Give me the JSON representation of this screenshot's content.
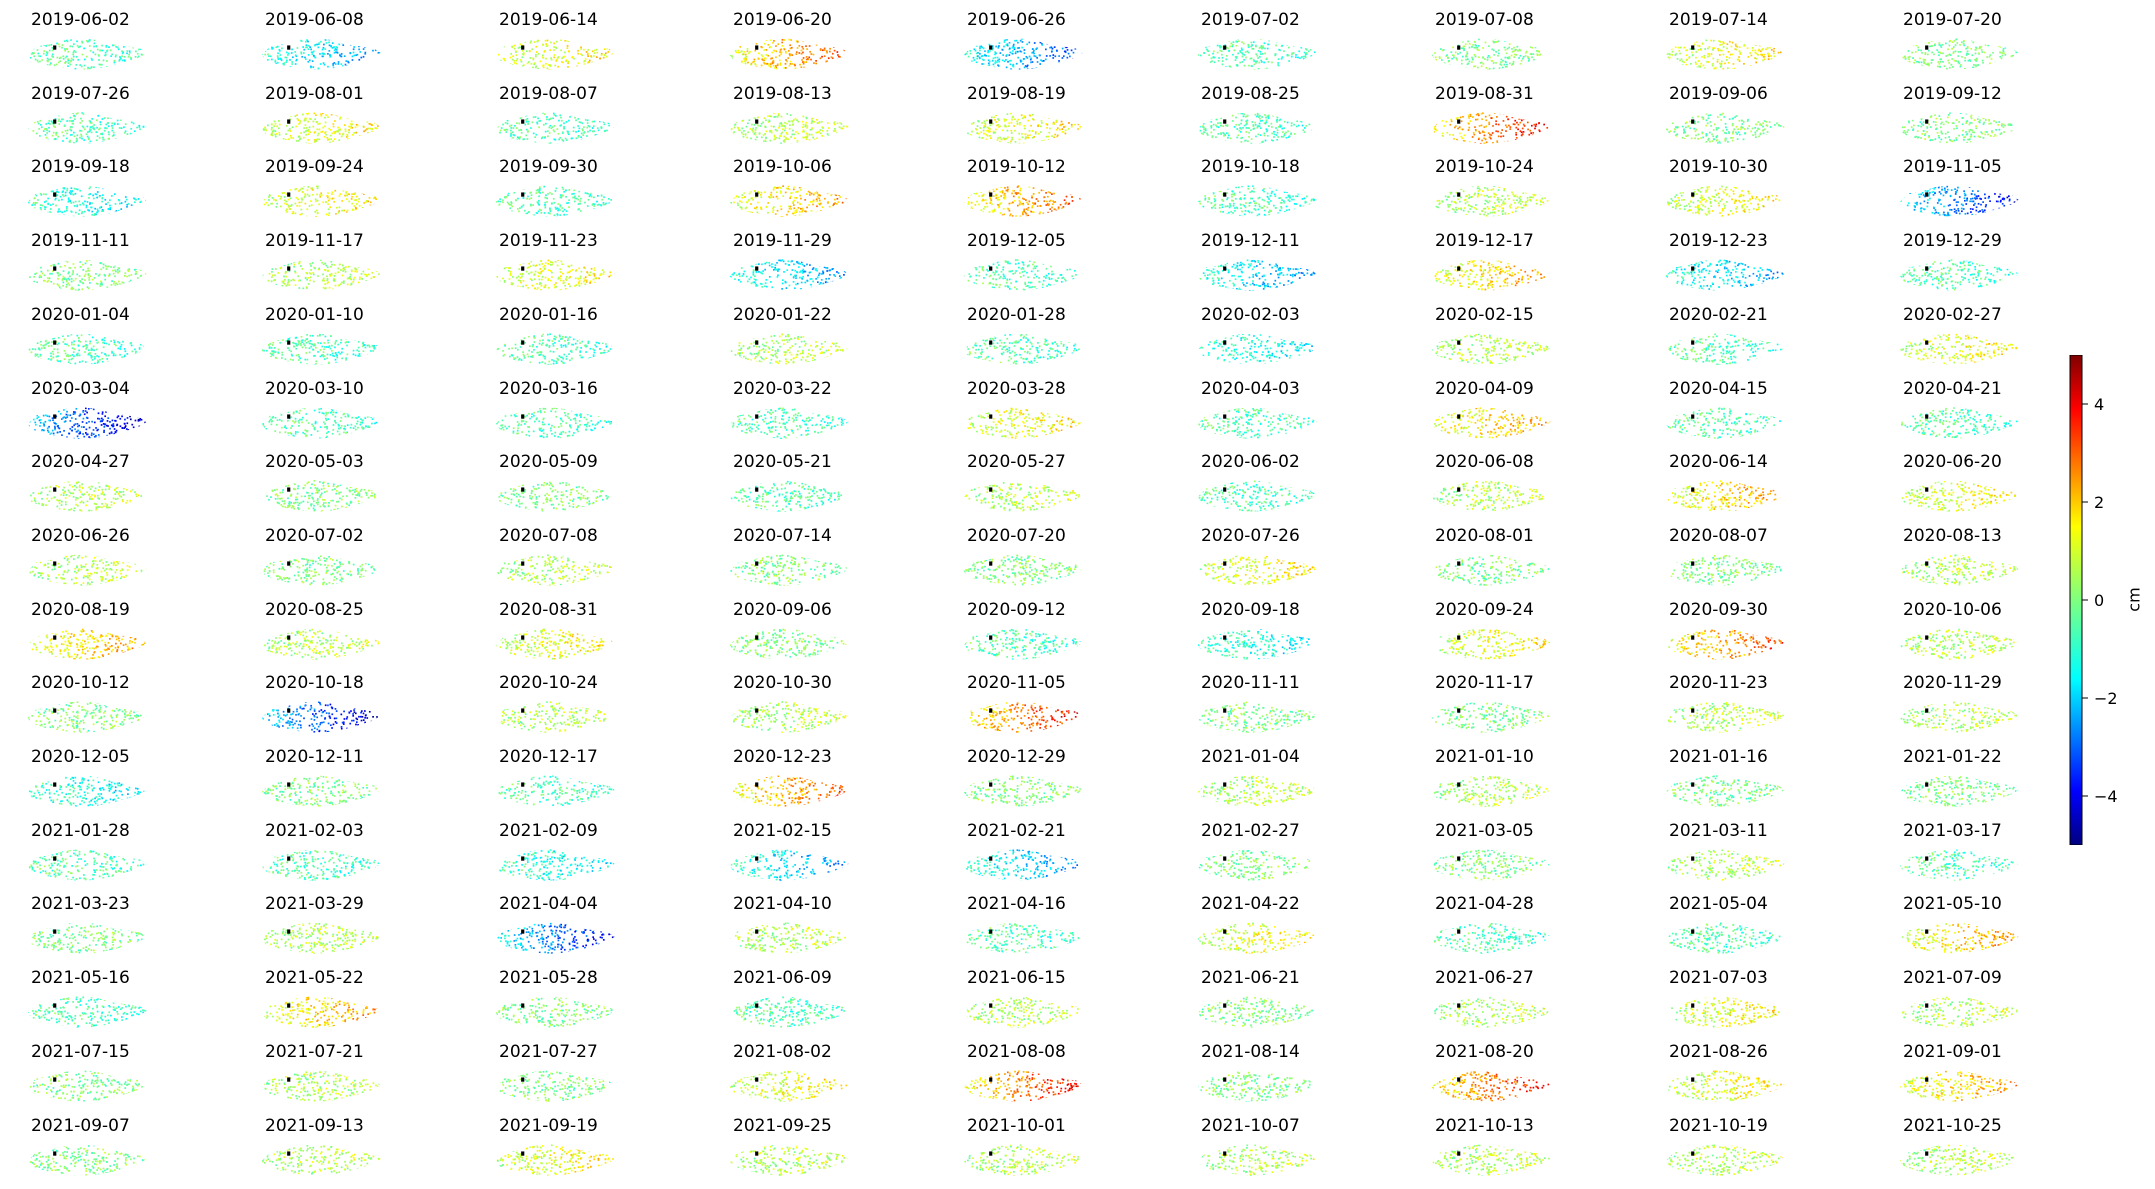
{
  "chart_data": {
    "type": "heatmap",
    "title": "",
    "colorbar": {
      "label": "cm",
      "range": [
        -5,
        5
      ],
      "ticks": [
        4,
        2,
        0,
        -2,
        -4
      ],
      "tick_labels": [
        "4",
        "2",
        "0",
        "−2",
        "−4"
      ],
      "colormap": "jet"
    },
    "grid": {
      "rows": 16,
      "columns": 9
    },
    "panels": [
      {
        "date": "2019-06-02",
        "mean": -0.5
      },
      {
        "date": "2019-06-08",
        "mean": -1.5
      },
      {
        "date": "2019-06-14",
        "mean": 1.0
      },
      {
        "date": "2019-06-20",
        "mean": 2.0
      },
      {
        "date": "2019-06-26",
        "mean": -2.0
      },
      {
        "date": "2019-07-02",
        "mean": -0.5
      },
      {
        "date": "2019-07-08",
        "mean": 0.0
      },
      {
        "date": "2019-07-14",
        "mean": 1.0
      },
      {
        "date": "2019-07-20",
        "mean": 0.0
      },
      {
        "date": "2019-07-26",
        "mean": -0.5
      },
      {
        "date": "2019-08-01",
        "mean": 1.0
      },
      {
        "date": "2019-08-07",
        "mean": -0.5
      },
      {
        "date": "2019-08-13",
        "mean": 0.5
      },
      {
        "date": "2019-08-19",
        "mean": 1.0
      },
      {
        "date": "2019-08-25",
        "mean": -0.5
      },
      {
        "date": "2019-08-31",
        "mean": 2.5
      },
      {
        "date": "2019-09-06",
        "mean": 0.0
      },
      {
        "date": "2019-09-12",
        "mean": 0.0
      },
      {
        "date": "2019-09-18",
        "mean": -1.0
      },
      {
        "date": "2019-09-24",
        "mean": 1.0
      },
      {
        "date": "2019-09-30",
        "mean": -0.5
      },
      {
        "date": "2019-10-06",
        "mean": 1.5
      },
      {
        "date": "2019-10-12",
        "mean": 2.0
      },
      {
        "date": "2019-10-18",
        "mean": -0.5
      },
      {
        "date": "2019-10-24",
        "mean": 0.5
      },
      {
        "date": "2019-10-30",
        "mean": 1.0
      },
      {
        "date": "2019-11-05",
        "mean": -2.5
      },
      {
        "date": "2019-11-11",
        "mean": 0.0
      },
      {
        "date": "2019-11-17",
        "mean": 0.5
      },
      {
        "date": "2019-11-23",
        "mean": 1.0
      },
      {
        "date": "2019-11-29",
        "mean": -1.5
      },
      {
        "date": "2019-12-05",
        "mean": -0.5
      },
      {
        "date": "2019-12-11",
        "mean": -1.5
      },
      {
        "date": "2019-12-17",
        "mean": 1.5
      },
      {
        "date": "2019-12-23",
        "mean": -1.5
      },
      {
        "date": "2019-12-29",
        "mean": -0.5
      },
      {
        "date": "2020-01-04",
        "mean": -0.5
      },
      {
        "date": "2020-01-10",
        "mean": -0.5
      },
      {
        "date": "2020-01-16",
        "mean": -0.5
      },
      {
        "date": "2020-01-22",
        "mean": 0.5
      },
      {
        "date": "2020-01-28",
        "mean": -0.5
      },
      {
        "date": "2020-02-03",
        "mean": -1.0
      },
      {
        "date": "2020-02-15",
        "mean": 0.5
      },
      {
        "date": "2020-02-21",
        "mean": -0.5
      },
      {
        "date": "2020-02-27",
        "mean": 1.0
      },
      {
        "date": "2020-03-04",
        "mean": -3.0
      },
      {
        "date": "2020-03-10",
        "mean": -0.5
      },
      {
        "date": "2020-03-16",
        "mean": -0.5
      },
      {
        "date": "2020-03-22",
        "mean": -0.5
      },
      {
        "date": "2020-03-28",
        "mean": 1.0
      },
      {
        "date": "2020-04-03",
        "mean": -0.5
      },
      {
        "date": "2020-04-09",
        "mean": 1.5
      },
      {
        "date": "2020-04-15",
        "mean": -0.5
      },
      {
        "date": "2020-04-21",
        "mean": -0.5
      },
      {
        "date": "2020-04-27",
        "mean": 0.5
      },
      {
        "date": "2020-05-03",
        "mean": 0.0
      },
      {
        "date": "2020-05-09",
        "mean": 0.0
      },
      {
        "date": "2020-05-21",
        "mean": -0.5
      },
      {
        "date": "2020-05-27",
        "mean": 0.5
      },
      {
        "date": "2020-06-02",
        "mean": -0.5
      },
      {
        "date": "2020-06-08",
        "mean": 0.5
      },
      {
        "date": "2020-06-14",
        "mean": 1.5
      },
      {
        "date": "2020-06-20",
        "mean": 1.0
      },
      {
        "date": "2020-06-26",
        "mean": 0.5
      },
      {
        "date": "2020-07-02",
        "mean": 0.0
      },
      {
        "date": "2020-07-08",
        "mean": 0.5
      },
      {
        "date": "2020-07-14",
        "mean": 0.0
      },
      {
        "date": "2020-07-20",
        "mean": 0.0
      },
      {
        "date": "2020-07-26",
        "mean": 1.0
      },
      {
        "date": "2020-08-01",
        "mean": 0.0
      },
      {
        "date": "2020-08-07",
        "mean": 0.0
      },
      {
        "date": "2020-08-13",
        "mean": 0.5
      },
      {
        "date": "2020-08-19",
        "mean": 1.5
      },
      {
        "date": "2020-08-25",
        "mean": 0.5
      },
      {
        "date": "2020-08-31",
        "mean": 1.0
      },
      {
        "date": "2020-09-06",
        "mean": 0.0
      },
      {
        "date": "2020-09-12",
        "mean": -0.5
      },
      {
        "date": "2020-09-18",
        "mean": -1.0
      },
      {
        "date": "2020-09-24",
        "mean": 1.0
      },
      {
        "date": "2020-09-30",
        "mean": 2.0
      },
      {
        "date": "2020-10-06",
        "mean": 0.5
      },
      {
        "date": "2020-10-12",
        "mean": 0.0
      },
      {
        "date": "2020-10-18",
        "mean": -3.0
      },
      {
        "date": "2020-10-24",
        "mean": 0.5
      },
      {
        "date": "2020-10-30",
        "mean": 0.5
      },
      {
        "date": "2020-11-05",
        "mean": 2.5
      },
      {
        "date": "2020-11-11",
        "mean": 0.0
      },
      {
        "date": "2020-11-17",
        "mean": 0.0
      },
      {
        "date": "2020-11-23",
        "mean": 0.5
      },
      {
        "date": "2020-11-29",
        "mean": 0.5
      },
      {
        "date": "2020-12-05",
        "mean": -1.0
      },
      {
        "date": "2020-12-11",
        "mean": 0.0
      },
      {
        "date": "2020-12-17",
        "mean": -0.5
      },
      {
        "date": "2020-12-23",
        "mean": 2.0
      },
      {
        "date": "2020-12-29",
        "mean": 0.0
      },
      {
        "date": "2021-01-04",
        "mean": 0.5
      },
      {
        "date": "2021-01-10",
        "mean": 0.5
      },
      {
        "date": "2021-01-16",
        "mean": 0.0
      },
      {
        "date": "2021-01-22",
        "mean": 0.0
      },
      {
        "date": "2021-01-28",
        "mean": -0.5
      },
      {
        "date": "2021-02-03",
        "mean": -0.5
      },
      {
        "date": "2021-02-09",
        "mean": -1.0
      },
      {
        "date": "2021-02-15",
        "mean": -1.5
      },
      {
        "date": "2021-02-21",
        "mean": -1.5
      },
      {
        "date": "2021-02-27",
        "mean": 0.0
      },
      {
        "date": "2021-03-05",
        "mean": 0.0
      },
      {
        "date": "2021-03-11",
        "mean": 0.5
      },
      {
        "date": "2021-03-17",
        "mean": -0.5
      },
      {
        "date": "2021-03-23",
        "mean": 0.0
      },
      {
        "date": "2021-03-29",
        "mean": 0.5
      },
      {
        "date": "2021-04-04",
        "mean": -2.5
      },
      {
        "date": "2021-04-10",
        "mean": 0.5
      },
      {
        "date": "2021-04-16",
        "mean": -0.5
      },
      {
        "date": "2021-04-22",
        "mean": 1.0
      },
      {
        "date": "2021-04-28",
        "mean": -0.5
      },
      {
        "date": "2021-05-04",
        "mean": -0.5
      },
      {
        "date": "2021-05-10",
        "mean": 1.5
      },
      {
        "date": "2021-05-16",
        "mean": -0.5
      },
      {
        "date": "2021-05-22",
        "mean": 1.5
      },
      {
        "date": "2021-05-28",
        "mean": 0.0
      },
      {
        "date": "2021-06-09",
        "mean": -0.5
      },
      {
        "date": "2021-06-15",
        "mean": 0.5
      },
      {
        "date": "2021-06-21",
        "mean": 0.0
      },
      {
        "date": "2021-06-27",
        "mean": 0.5
      },
      {
        "date": "2021-07-03",
        "mean": 1.0
      },
      {
        "date": "2021-07-09",
        "mean": 0.5
      },
      {
        "date": "2021-07-15",
        "mean": 0.0
      },
      {
        "date": "2021-07-21",
        "mean": 0.5
      },
      {
        "date": "2021-07-27",
        "mean": 0.0
      },
      {
        "date": "2021-08-02",
        "mean": 1.0
      },
      {
        "date": "2021-08-08",
        "mean": 2.5
      },
      {
        "date": "2021-08-14",
        "mean": 0.0
      },
      {
        "date": "2021-08-20",
        "mean": 2.5
      },
      {
        "date": "2021-08-26",
        "mean": 1.0
      },
      {
        "date": "2021-09-01",
        "mean": 1.5
      },
      {
        "date": "2021-09-07",
        "mean": 0.0
      },
      {
        "date": "2021-09-13",
        "mean": 0.5
      },
      {
        "date": "2021-09-19",
        "mean": 1.0
      },
      {
        "date": "2021-09-25",
        "mean": 0.5
      },
      {
        "date": "2021-10-01",
        "mean": 0.5
      },
      {
        "date": "2021-10-07",
        "mean": 0.5
      },
      {
        "date": "2021-10-13",
        "mean": 0.5
      },
      {
        "date": "2021-10-19",
        "mean": 0.5
      },
      {
        "date": "2021-10-25",
        "mean": 0.5
      }
    ]
  }
}
